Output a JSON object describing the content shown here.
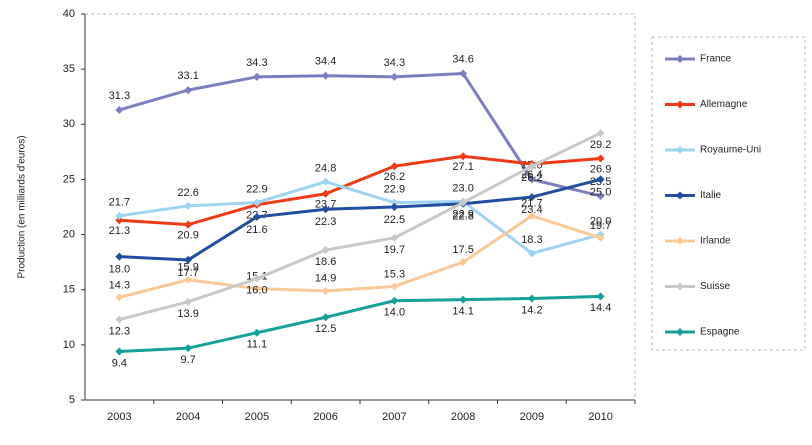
{
  "chart_data": {
    "type": "line",
    "y_label": "Production (en milliards d'euros)",
    "categories": [
      "2003",
      "2004",
      "2005",
      "2006",
      "2007",
      "2008",
      "2009",
      "2010"
    ],
    "ylim": [
      5,
      40
    ],
    "yticks": [
      5,
      10,
      15,
      20,
      25,
      30,
      35,
      40
    ],
    "grid": false,
    "legend": "right",
    "series": [
      {
        "name": "France",
        "color": "#7b7fc0",
        "values": [
          31.3,
          33.1,
          34.3,
          34.4,
          34.3,
          34.6,
          25.0,
          23.5
        ],
        "value_labels": [
          "31.3",
          "33.1",
          "34.3",
          "34.4",
          "34.3",
          "34.6",
          "25.0",
          "23.5"
        ]
      },
      {
        "name": "Allemagne",
        "color": "#ee3b16",
        "values": [
          21.3,
          20.9,
          22.7,
          23.7,
          26.2,
          27.1,
          26.4,
          26.9
        ],
        "value_labels": [
          "21.3",
          "20.9",
          "22.7",
          "23.7",
          "26.2",
          "27.1",
          "26.4",
          "26.9"
        ]
      },
      {
        "name": "Royaume-Uni",
        "color": "#9fd3f2",
        "values": [
          21.7,
          22.6,
          22.9,
          24.8,
          22.9,
          23.0,
          18.3,
          20.0
        ],
        "value_labels": [
          "21.7",
          "22.6",
          "22.9",
          "24.8",
          "22.9",
          "23.0",
          "18.3",
          "20.0"
        ]
      },
      {
        "name": "Italie",
        "color": "#1f4f9e",
        "values": [
          18.0,
          17.7,
          21.6,
          22.3,
          22.5,
          22.8,
          23.4,
          25.0
        ],
        "value_labels": [
          "18.0",
          "17.7",
          "21.6",
          "22.3",
          "22.5",
          "22.8",
          "23.4",
          "25.0"
        ]
      },
      {
        "name": "Irlande",
        "color": "#fbc998",
        "values": [
          14.3,
          15.9,
          15.1,
          14.9,
          15.3,
          17.5,
          21.7,
          19.7
        ],
        "value_labels": [
          "14.3",
          "15.9",
          "15.1",
          "14.9",
          "15.3",
          "17.5",
          "21.7",
          "19.7"
        ]
      },
      {
        "name": "Suisse",
        "color": "#c8c8c8",
        "values": [
          12.3,
          13.9,
          16.0,
          18.6,
          19.7,
          22.9,
          26.2,
          29.2
        ],
        "value_labels": [
          "12.3",
          "13.9",
          "16.0",
          "18.6",
          "19.7",
          "22.9",
          "26.2",
          "29.2"
        ]
      },
      {
        "name": "Espagne",
        "color": "#16a09a",
        "values": [
          9.4,
          9.7,
          11.1,
          12.5,
          14.0,
          14.1,
          14.2,
          14.4
        ],
        "value_labels": [
          "9.4",
          "9.7",
          "11.1",
          "12.5",
          "14.0",
          "14.1",
          "14.2",
          "14.4"
        ]
      }
    ]
  }
}
